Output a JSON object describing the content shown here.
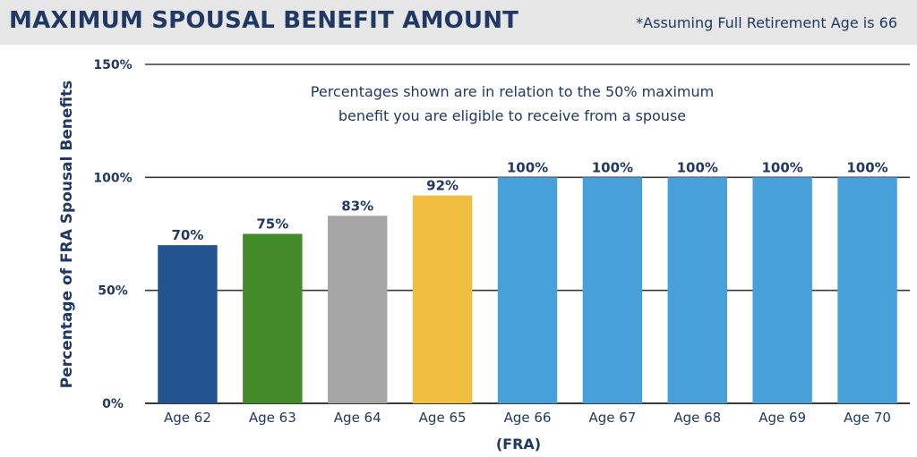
{
  "header": {
    "title": "MAXIMUM SPOUSAL BENEFIT AMOUNT",
    "note": "*Assuming Full Retirement Age is 66"
  },
  "chart_data": {
    "type": "bar",
    "categories": [
      "Age 62",
      "Age 63",
      "Age 64",
      "Age 65",
      "Age 66",
      "Age 67",
      "Age 68",
      "Age 69",
      "Age 70"
    ],
    "values": [
      70,
      75,
      83,
      92,
      100,
      100,
      100,
      100,
      100
    ],
    "data_labels": [
      "70%",
      "75%",
      "83%",
      "92%",
      "100%",
      "100%",
      "100%",
      "100%",
      "100%"
    ],
    "colors": [
      "#23548f",
      "#438a2a",
      "#a5a5a5",
      "#f0bd40",
      "#48a0da",
      "#48a0da",
      "#48a0da",
      "#48a0da",
      "#48a0da"
    ],
    "ylabel": "Percentage of FRA Spousal Benefits",
    "ylim": [
      0,
      150
    ],
    "yticks": [
      0,
      50,
      100,
      150
    ],
    "ytick_labels": [
      "0%",
      "50%",
      "100%",
      "150%"
    ],
    "fra_label": "(FRA)",
    "annotation": [
      "Percentages shown are in relation to the 50% maximum",
      "benefit you are eligible to receive from a spouse"
    ],
    "grid": true
  }
}
